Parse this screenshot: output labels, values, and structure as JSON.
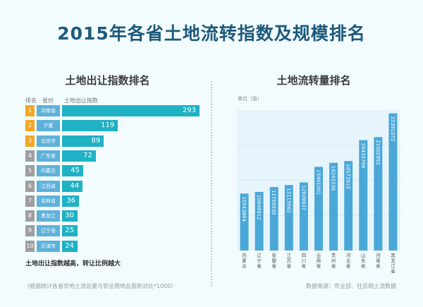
{
  "title": "2015年各省土地流转指数及规模排名",
  "left_panel": {
    "title": "土地出让指数排名",
    "col_rank": "排名",
    "col_province": "省份",
    "col_index": "土地出让指数",
    "note": "土地出让指数越高，转让比例越大",
    "footnote": "（根据统计各省农地土流总量与农业用地总面积对比*1000）"
  },
  "right_panel": {
    "title": "土地流转量排名",
    "unit": "单位（亩）",
    "source": "数据来源：农业部、社员网土流数据"
  },
  "colors": {
    "rank_top": "#f5a623",
    "rank_other": "#9e9e9e",
    "index_bar": "#1fb1c4",
    "province_box": "#5fb1da",
    "volume_bar": "#4aa8d8"
  },
  "chart_data": [
    {
      "type": "bar",
      "orientation": "horizontal",
      "title": "土地出让指数排名",
      "ranks": [
        "1",
        "2",
        "3",
        "4",
        "5",
        "6",
        "7",
        "8",
        "9",
        "10"
      ],
      "categories": [
        "河南省",
        "宁夏",
        "北京市",
        "广东省",
        "内蒙古",
        "江西省",
        "吉林省",
        "黑龙江",
        "辽宁省",
        "天津市"
      ],
      "values": [
        293,
        119,
        89,
        72,
        45,
        44,
        36,
        30,
        25,
        24
      ]
    },
    {
      "type": "bar",
      "orientation": "vertical",
      "title": "土地流转量排名",
      "ylabel": "单位（亩）",
      "categories": [
        "内蒙古",
        "辽宁省",
        "安徽省",
        "江苏省",
        "四川省",
        "云南省",
        "贵州省",
        "河北省",
        "山东省",
        "河南省",
        "黑龙江省"
      ],
      "values": [
        10543864,
        10849912,
        11756930,
        12115062,
        12609837,
        15491001,
        16243336,
        16572915,
        20433769,
        21002952,
        25391072
      ],
      "grid": true
    }
  ]
}
